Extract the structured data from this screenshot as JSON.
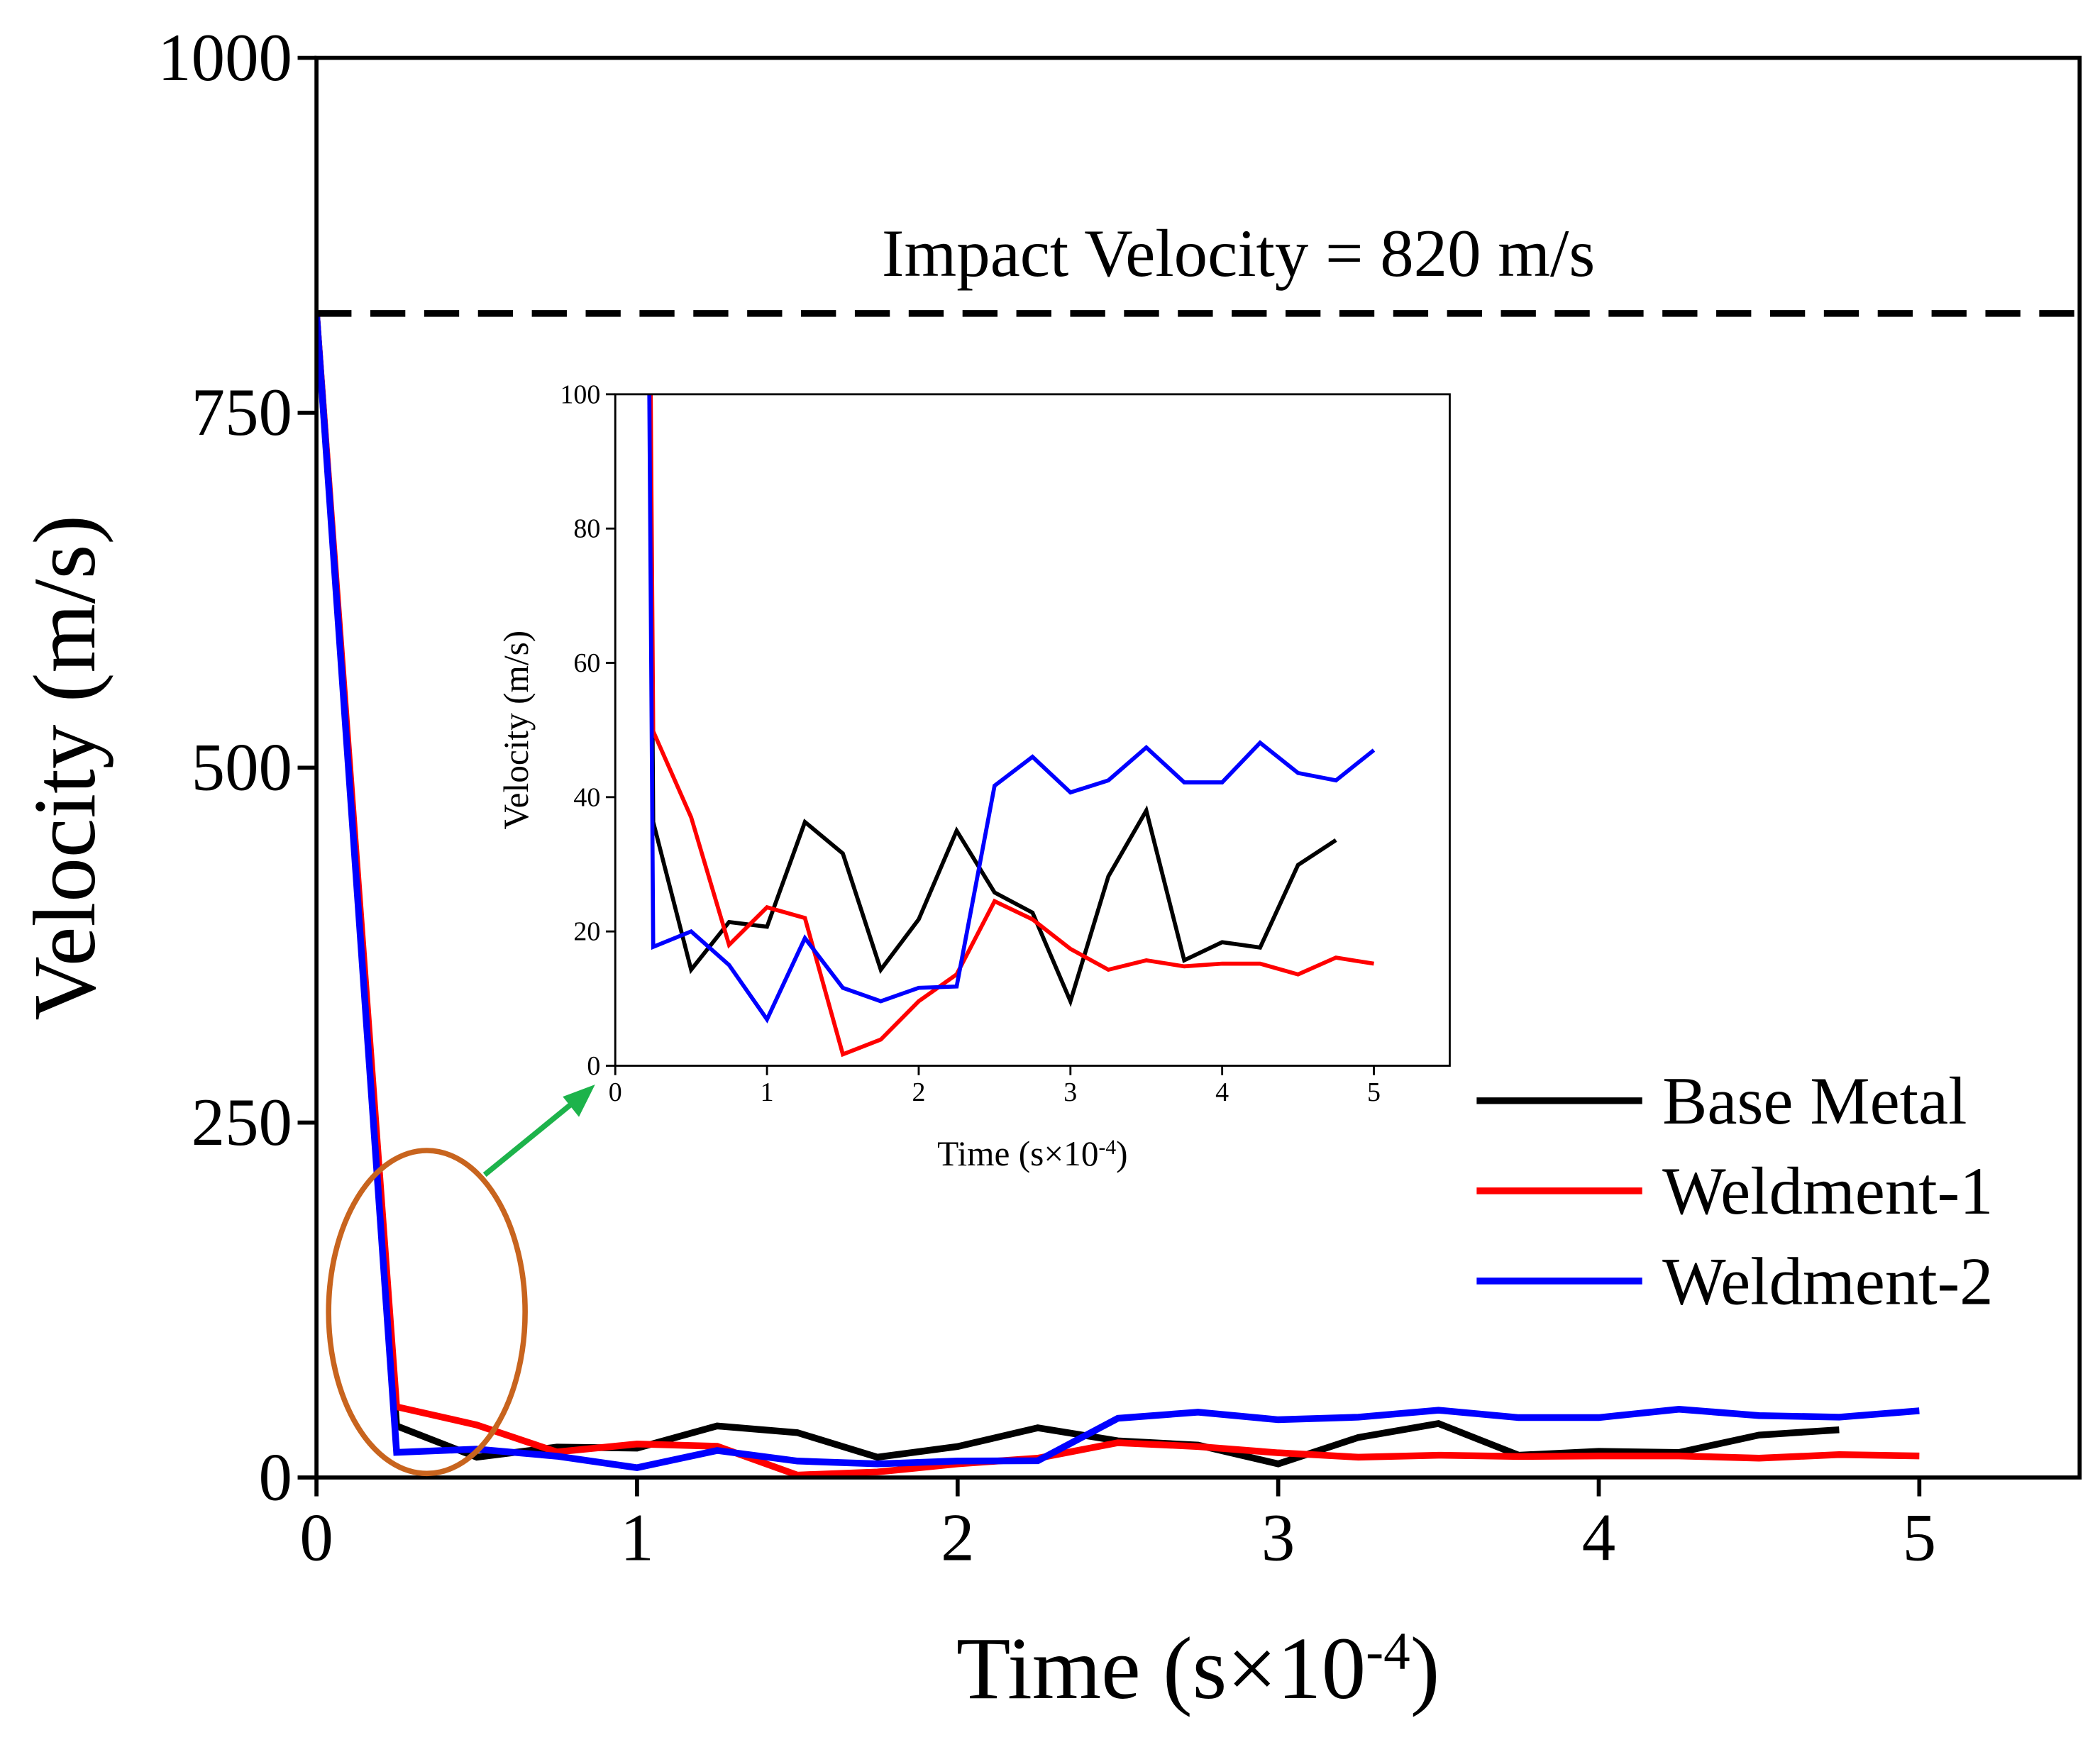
{
  "chart_data": {
    "type": "line",
    "xlabel": "Time (s×10",
    "xlabel_sup": "-4",
    "xlabel_end": ")",
    "ylabel": "Velocity (m/s)",
    "xlim": [
      0,
      5.5
    ],
    "ylim": [
      0,
      1000
    ],
    "xticks": [
      "0",
      "1",
      "2",
      "3",
      "4",
      "5"
    ],
    "yticks": [
      "0",
      "250",
      "500",
      "750",
      "1000"
    ],
    "annotation": "Impact Velocity = 820 m/s",
    "reference_line": 820,
    "legend": {
      "position": "lower-right",
      "entries": [
        "Base Metal",
        "Weldment-1",
        "Weldment-2"
      ]
    },
    "colors": {
      "Base Metal": "#000000",
      "Weldment-1": "#ff0000",
      "Weldment-2": "#0000ff",
      "highlight": "#c8641e",
      "arrow": "#1db34b"
    },
    "x": [
      0,
      0.25,
      0.5,
      0.75,
      1.0,
      1.25,
      1.5,
      1.75,
      2.0,
      2.25,
      2.5,
      2.75,
      3.0,
      3.25,
      3.5,
      3.75,
      4.0,
      4.25,
      4.5,
      4.75,
      5.0
    ],
    "series": [
      {
        "name": "Base Metal",
        "values": [
          820,
          36.3,
          14.3,
          21.4,
          20.7,
          36.3,
          31.6,
          14.3,
          21.8,
          35,
          25.8,
          22.8,
          9.6,
          28.2,
          38,
          15.7,
          18.4,
          17.6,
          29.9,
          33.6,
          null
        ]
      },
      {
        "name": "Weldment-1",
        "values": [
          820,
          49.8,
          37,
          18,
          23.6,
          22,
          1.7,
          3.9,
          9.6,
          13.6,
          24.5,
          21.8,
          17.4,
          14.3,
          15.7,
          14.8,
          15.2,
          15.2,
          13.6,
          16.1,
          15.2
        ]
      },
      {
        "name": "Weldment-2",
        "values": [
          820,
          17.7,
          20,
          15,
          6.9,
          19,
          11.6,
          9.6,
          11.6,
          11.8,
          41.7,
          46,
          40.7,
          42.5,
          47.4,
          42.2,
          42.2,
          48.1,
          43.6,
          42.5,
          47
        ]
      }
    ],
    "inset": {
      "xlabel": "Time (s×10",
      "xlabel_sup": "-4",
      "xlabel_end": ")",
      "ylabel": "Velocity (m/s)",
      "xlim": [
        0,
        5.5
      ],
      "ylim": [
        0,
        100
      ],
      "xticks": [
        "0",
        "1",
        "2",
        "3",
        "4",
        "5"
      ],
      "yticks": [
        "0",
        "20",
        "40",
        "60",
        "80",
        "100"
      ]
    }
  }
}
